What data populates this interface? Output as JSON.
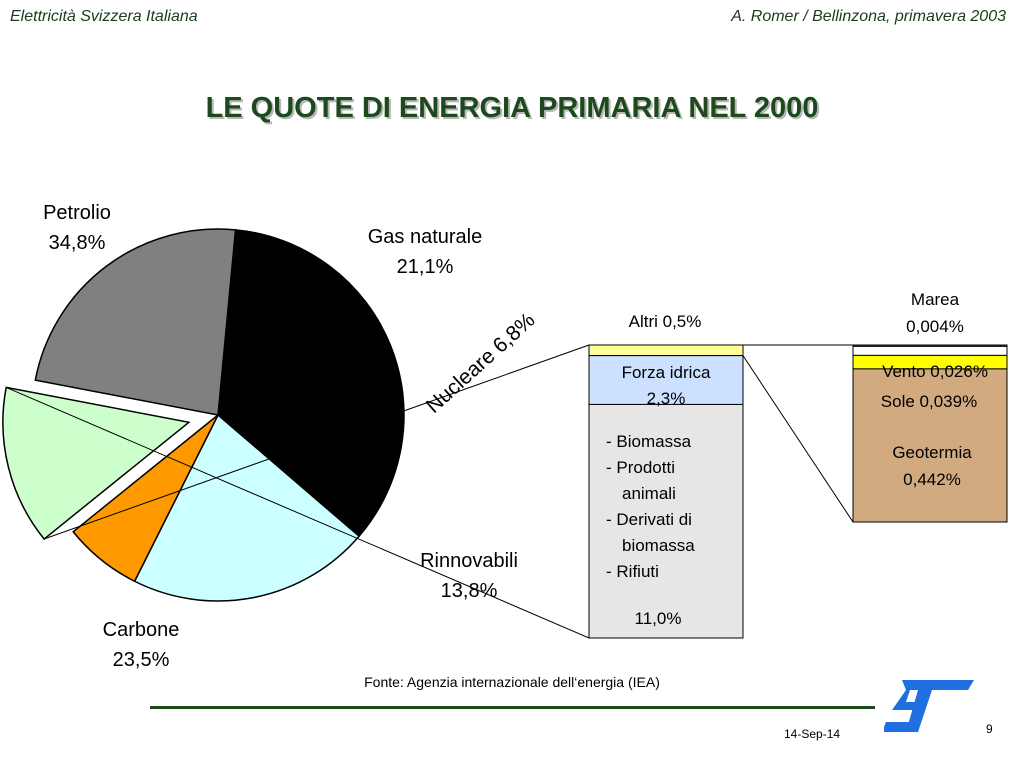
{
  "header": {
    "left": "Elettricità Svizzera Italiana",
    "right": "A. Romer / Bellinzona, primavera 2003"
  },
  "title": "LE QUOTE DI ENERGIA PRIMARIA NEL 2000",
  "chart_data": [
    {
      "type": "pie",
      "slices": [
        {
          "name": "Petrolio",
          "value": 34.8,
          "label": "34,8%",
          "color": "#000000",
          "exploded": false
        },
        {
          "name": "Gas naturale",
          "value": 21.1,
          "label": "21,1%",
          "color": "#ccffff",
          "exploded": false
        },
        {
          "name": "Nucleare",
          "value": 6.8,
          "label": "Nucleare 6,8%",
          "color": "#ff9900",
          "exploded": false
        },
        {
          "name": "Rinnovabili",
          "value": 13.8,
          "label": "13,8%",
          "color": "#ccffcc",
          "exploded": true
        },
        {
          "name": "Carbone",
          "value": 23.5,
          "label": "23,5%",
          "color": "#808080",
          "exploded": false
        }
      ]
    },
    {
      "type": "bar",
      "stacked": true,
      "segments": [
        {
          "name": "Altri",
          "value": 0.5,
          "label": "Altri 0,5%",
          "color": "#ffff99"
        },
        {
          "name": "Forza idrica",
          "value": 2.3,
          "label": "2,3%",
          "color": "#cce0ff"
        },
        {
          "name": "Biomassa, prodotti animali, derivati di biomassa, rifiuti",
          "value": 11.0,
          "label": "11,0%",
          "color": "#e6e6e6",
          "items": [
            "- Biomassa",
            "- Prodotti",
            "animali",
            "- Derivati di",
            "biomassa",
            "- Rifiuti"
          ]
        }
      ]
    },
    {
      "type": "bar",
      "stacked": true,
      "segments": [
        {
          "name": "Marea",
          "value": 0.004,
          "label": "0,004%",
          "color": "#1f6fe0"
        },
        {
          "name": "Vento",
          "value": 0.026,
          "label": "Vento 0,026%",
          "color": "#ffffff"
        },
        {
          "name": "Sole",
          "value": 0.039,
          "label": "Sole 0,039%",
          "color": "#ffff00"
        },
        {
          "name": "Geotermia",
          "value": 0.442,
          "label": "0,442%",
          "color": "#d2aa7f"
        }
      ]
    }
  ],
  "source": "Fonte: Agenzia internazionale dell‘energia (IEA)",
  "footer": {
    "date": "14-Sep-14",
    "page": "9"
  },
  "logo": {
    "icon": "st-logo",
    "color": "#1f6fe0"
  }
}
